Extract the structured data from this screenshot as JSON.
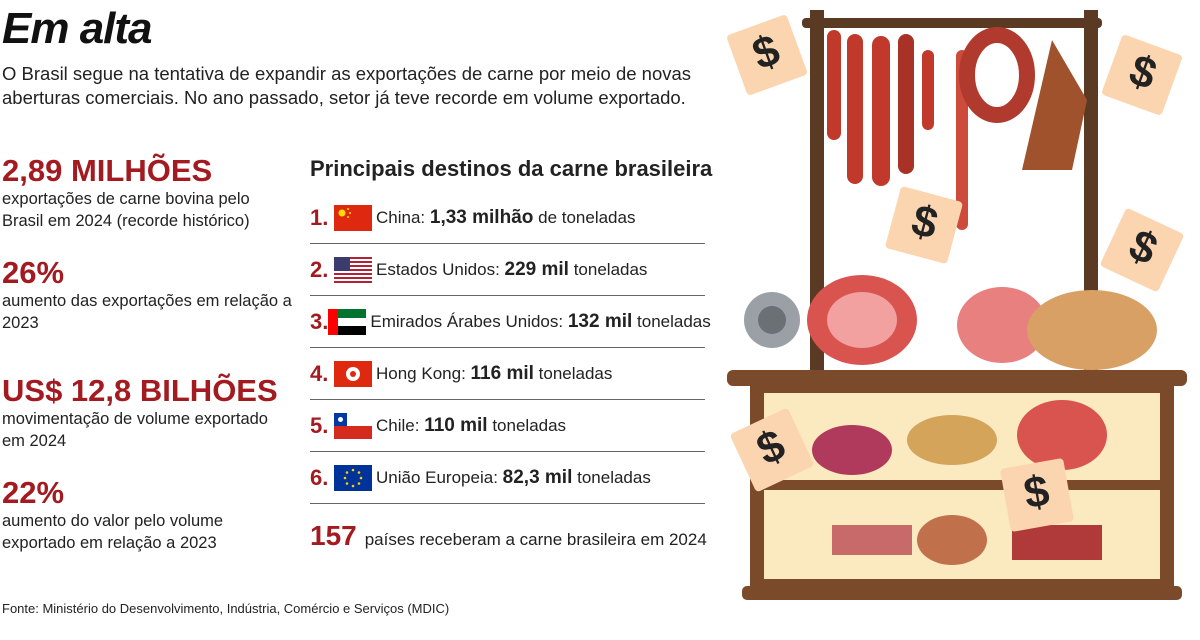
{
  "header": {
    "title": "Em alta",
    "subtitle": "O Brasil segue na tentativa de expandir as exportações de carne por meio de novas aberturas comerciais. No ano passado, setor já teve recorde em volume exportado."
  },
  "stats": [
    {
      "value": "2,89 MILHÕES",
      "description": "exportações de carne bovina pelo Brasil em 2024 (recorde histórico)"
    },
    {
      "value": "26%",
      "description": "aumento das exportações em relação a 2023"
    },
    {
      "value": "US$ 12,8 BILHÕES",
      "description": "movimentação de volume exportado em 2024"
    },
    {
      "value": "22%",
      "description": "aumento do valor pelo volume exportado em relação a 2023"
    }
  ],
  "destinations": {
    "title": "Principais destinos da carne brasileira",
    "rows": [
      {
        "rank": "1.",
        "country": "China:",
        "amount": "1,33 milhão",
        "unit": "de toneladas"
      },
      {
        "rank": "2.",
        "country": "Estados Unidos:",
        "amount": "229 mil",
        "unit": "toneladas"
      },
      {
        "rank": "3.",
        "country": "Emirados Árabes Unidos:",
        "amount": "132 mil",
        "unit": "toneladas"
      },
      {
        "rank": "4.",
        "country": "Hong Kong:",
        "amount": "116 mil",
        "unit": "toneladas"
      },
      {
        "rank": "5.",
        "country": "Chile:",
        "amount": "110 mil",
        "unit": "toneladas"
      },
      {
        "rank": "6.",
        "country": "União Europeia:",
        "amount": "82,3 mil",
        "unit": "toneladas"
      }
    ],
    "total": {
      "value": "157",
      "text": "países receberam a carne brasileira em 2024"
    }
  },
  "illustration": {
    "price_tag": "$"
  },
  "footer": {
    "source": "Fonte: Ministério do Desenvolvimento, Indústria, Comércio e Serviços (MDIC)"
  }
}
